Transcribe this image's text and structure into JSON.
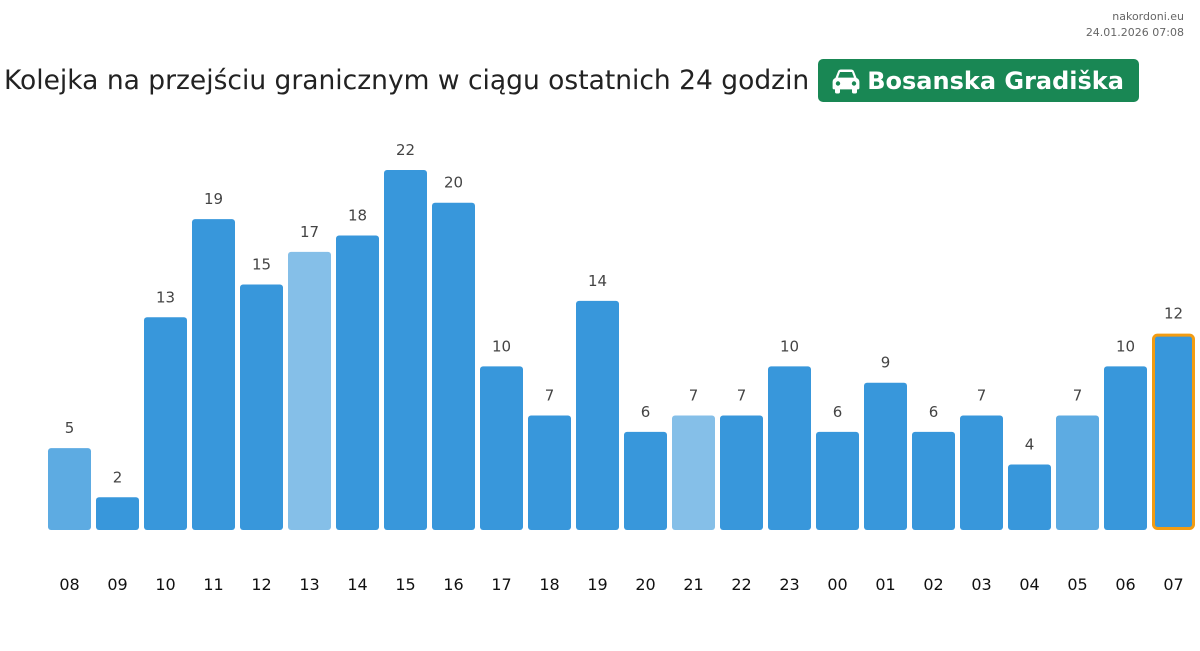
{
  "source": {
    "site": "nakordoni.eu",
    "timestamp": "24.01.2026 07:08"
  },
  "header": {
    "title": "Kolejka na przejściu granicznym w ciągu ostatnich 24 godzin",
    "crossing_name": "Bosanska Gradiška",
    "crossing_icon": "car-icon",
    "badge_color": "#198754"
  },
  "colors": {
    "bar_normal": "#3897db",
    "bar_mid": "#5dabe2",
    "bar_light": "#85bfe8",
    "highlight_border": "#f39c12"
  },
  "chart_data": {
    "type": "bar",
    "title": "",
    "xlabel": "",
    "ylabel": "",
    "categories": [
      "08",
      "09",
      "10",
      "11",
      "12",
      "13",
      "14",
      "15",
      "16",
      "17",
      "18",
      "19",
      "20",
      "21",
      "22",
      "23",
      "00",
      "01",
      "02",
      "03",
      "04",
      "05",
      "06",
      "07"
    ],
    "values": [
      5,
      2,
      13,
      19,
      15,
      17,
      18,
      22,
      20,
      10,
      7,
      14,
      6,
      7,
      7,
      10,
      6,
      9,
      6,
      7,
      4,
      7,
      10,
      12
    ],
    "bar_tones": [
      "mid",
      "normal",
      "normal",
      "normal",
      "normal",
      "light",
      "normal",
      "normal",
      "normal",
      "normal",
      "normal",
      "normal",
      "normal",
      "light",
      "normal",
      "normal",
      "normal",
      "normal",
      "normal",
      "normal",
      "normal",
      "mid",
      "normal",
      "normal"
    ],
    "highlighted_category": "07",
    "ylim": [
      0,
      22
    ],
    "grid": false,
    "legend": "none"
  }
}
